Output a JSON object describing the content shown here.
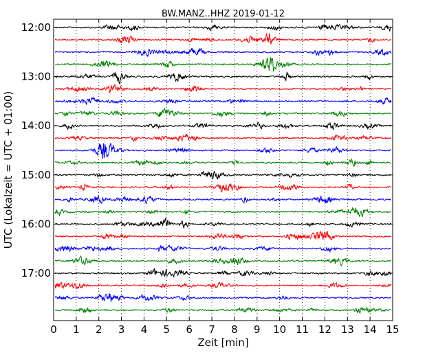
{
  "chart_data": {
    "type": "line",
    "title": "BW.MANZ..HHZ 2019-01-12",
    "xlabel": "Zeit  [min]",
    "ylabel": "UTC (Lokalzeit = UTC + 01:00)",
    "xlim": [
      0,
      15
    ],
    "x_ticks": [
      "0",
      "1",
      "2",
      "3",
      "4",
      "5",
      "6",
      "7",
      "8",
      "9",
      "10",
      "11",
      "12",
      "13",
      "14",
      "15"
    ],
    "y_tick_labels": [
      "12:00",
      "13:00",
      "14:00",
      "15:00",
      "16:00",
      "17:00"
    ],
    "trace_rows_per_hour": 4,
    "trace_minutes": 15,
    "row_start_times": [
      "12:00",
      "12:15",
      "12:30",
      "12:45",
      "13:00",
      "13:15",
      "13:30",
      "13:45",
      "14:00",
      "14:15",
      "14:30",
      "14:45",
      "15:00",
      "15:15",
      "15:30",
      "15:45",
      "16:00",
      "16:15",
      "16:30",
      "16:45",
      "17:00",
      "17:15",
      "17:30",
      "17:45"
    ],
    "series_colors": [
      "#000000",
      "#ff0000",
      "#0000ff",
      "#008000"
    ],
    "vertical_grid": "dotted"
  }
}
